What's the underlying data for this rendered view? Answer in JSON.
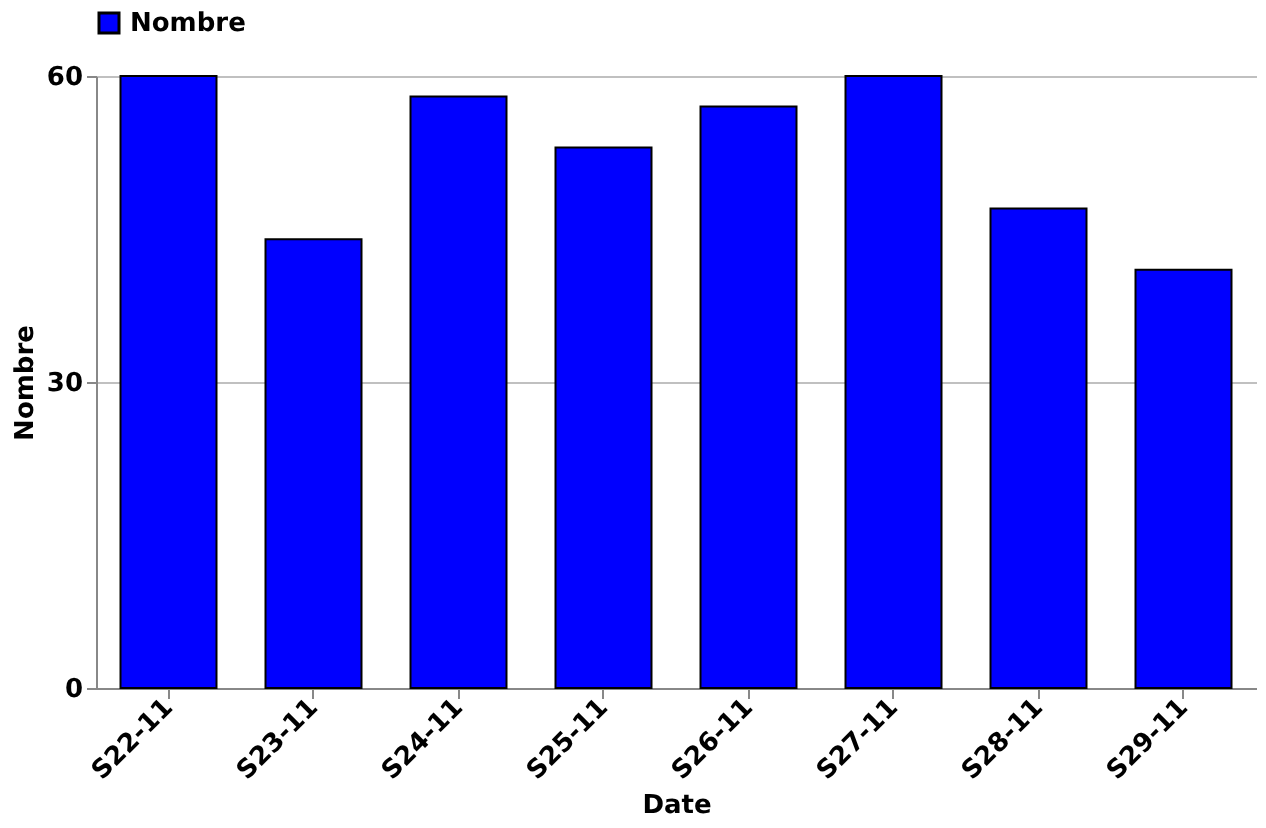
{
  "chart_data": {
    "type": "bar",
    "xlabel": "Date",
    "ylabel": "Nombre",
    "categories": [
      "S22-11",
      "S23-11",
      "S24-11",
      "S25-11",
      "S26-11",
      "S27-11",
      "S28-11",
      "S29-11"
    ],
    "series": [
      {
        "name": "Nombre",
        "color": "#0000ff",
        "values": [
          60,
          44,
          58,
          53,
          57,
          60,
          47,
          41
        ]
      }
    ],
    "ylim": [
      0,
      60
    ],
    "yticks": [
      0,
      30,
      60
    ],
    "grid": "y",
    "legend": "top"
  }
}
